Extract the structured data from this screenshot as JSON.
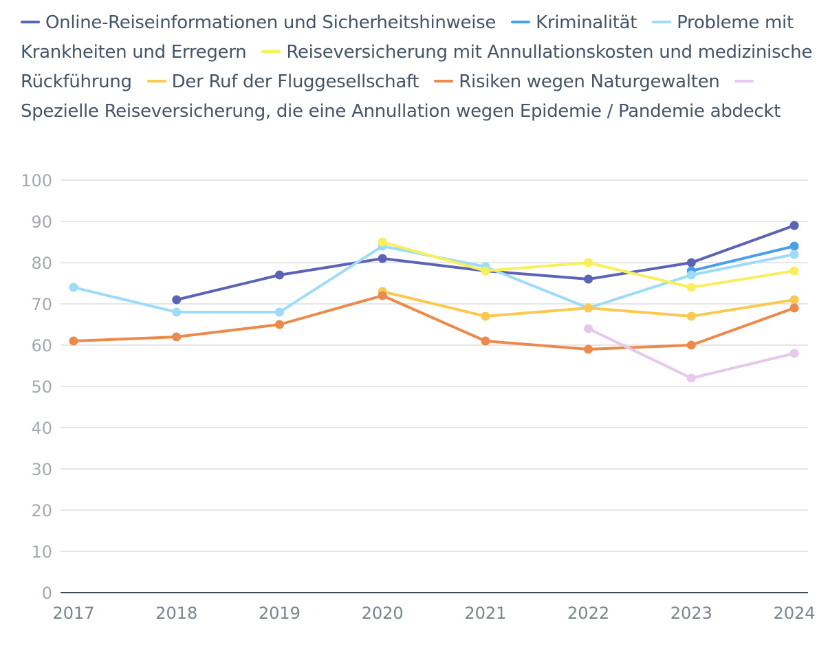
{
  "chart_data": {
    "type": "line",
    "title": "",
    "xlabel": "",
    "ylabel": "",
    "ylim": [
      0,
      100
    ],
    "yticks": [
      0,
      10,
      20,
      30,
      40,
      50,
      60,
      70,
      80,
      90,
      100
    ],
    "grid": true,
    "legend_position": "top",
    "categories": [
      "2017",
      "2018",
      "2019",
      "2020",
      "2021",
      "2022",
      "2023",
      "2024"
    ],
    "series": [
      {
        "name": "Online-Reiseinformationen und Sicherheitshinweise",
        "color": "#5b63b7",
        "values": [
          null,
          71,
          77,
          81,
          78,
          76,
          80,
          89
        ]
      },
      {
        "name": "Kriminalität",
        "color": "#4a9fea",
        "values": [
          null,
          null,
          null,
          null,
          null,
          null,
          78,
          84
        ]
      },
      {
        "name": "Probleme mit Krankheiten und Erregern",
        "color": "#9ddcf9",
        "values": [
          74,
          68,
          68,
          84,
          79,
          69,
          77,
          82
        ]
      },
      {
        "name": "Reiseversicherung mit Annullationskosten und medizinische Rückführung",
        "color": "#f9ef5a",
        "values": [
          null,
          null,
          null,
          85,
          78,
          80,
          74,
          78
        ]
      },
      {
        "name": "Der Ruf der Fluggesellschaft",
        "color": "#fbc94f",
        "values": [
          null,
          null,
          null,
          73,
          67,
          69,
          67,
          71
        ]
      },
      {
        "name": "Risiken wegen Naturgewalten",
        "color": "#ec8a4c",
        "values": [
          61,
          62,
          65,
          72,
          61,
          59,
          60,
          69
        ]
      },
      {
        "name": "Spezielle Reiseversicherung, die eine Annullation wegen Epidemie / Pandemie abdeckt",
        "color": "#e5c8ec",
        "values": [
          null,
          null,
          null,
          null,
          null,
          64,
          52,
          58
        ]
      }
    ]
  }
}
